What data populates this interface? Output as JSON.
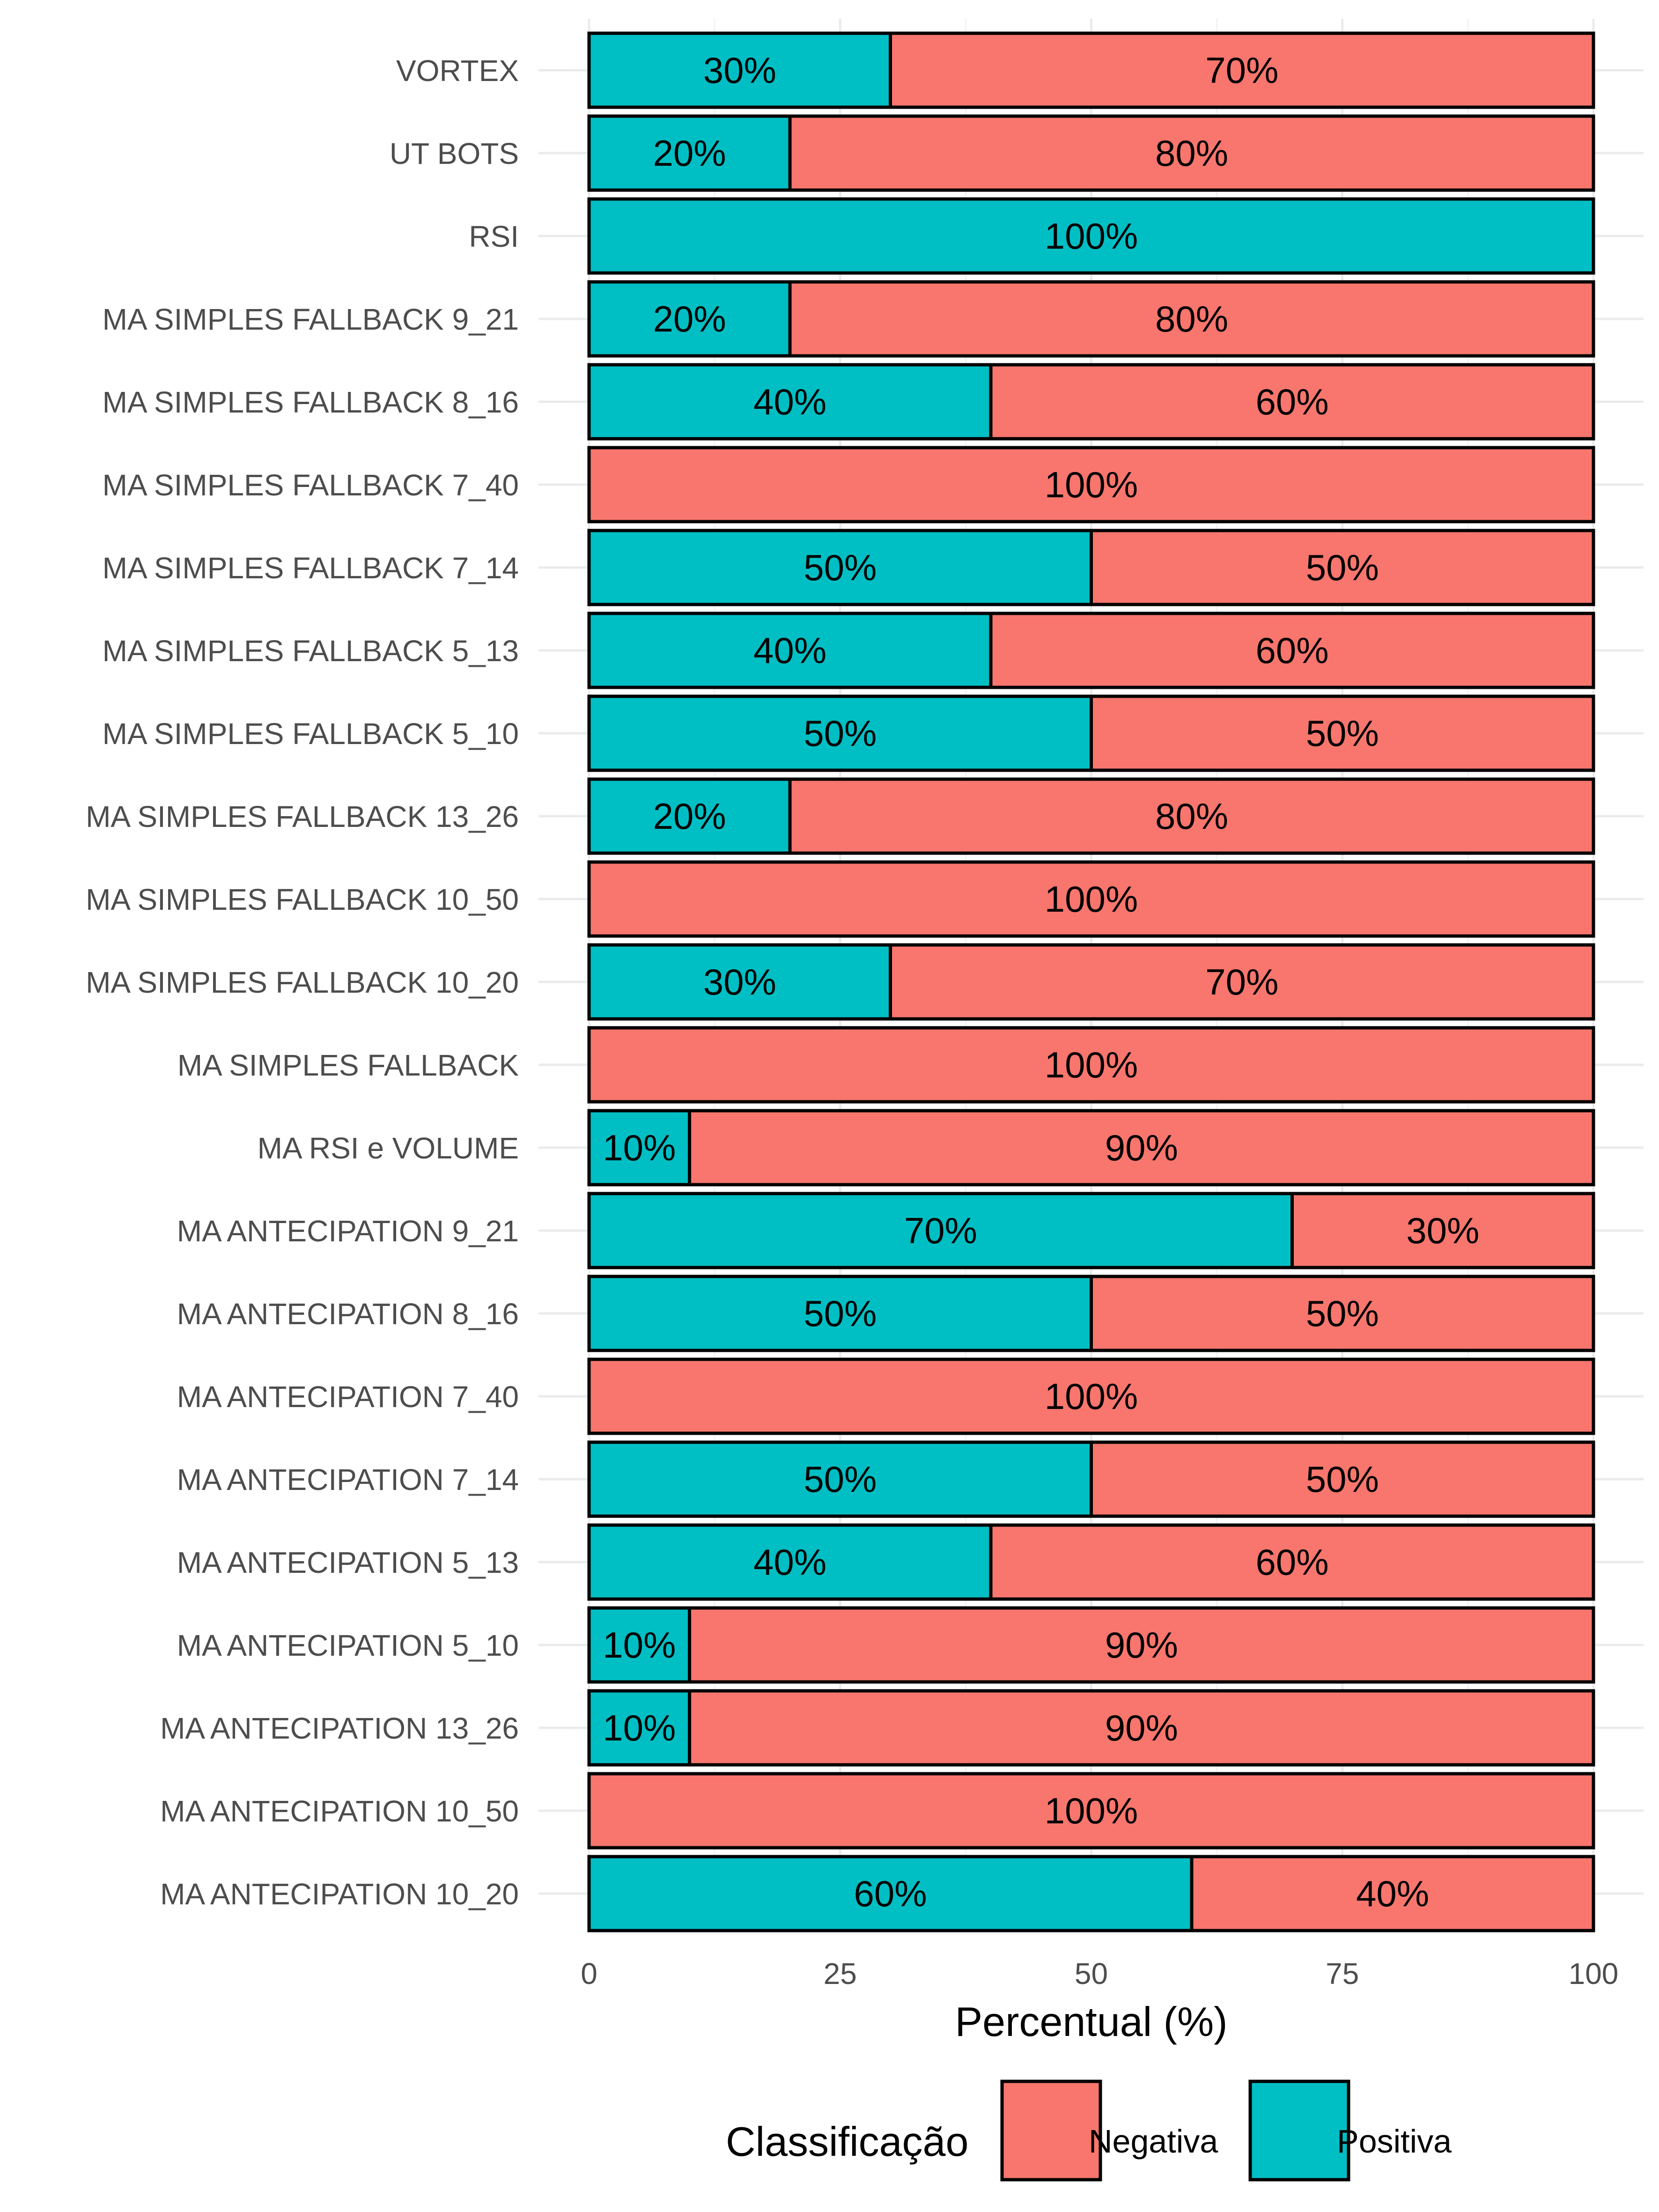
{
  "chart_data": {
    "type": "bar",
    "orientation": "horizontal",
    "stacked": true,
    "categories": [
      "VORTEX",
      "UT BOTS",
      "RSI",
      "MA SIMPLES FALLBACK 9_21",
      "MA SIMPLES FALLBACK 8_16",
      "MA SIMPLES FALLBACK 7_40",
      "MA SIMPLES FALLBACK 7_14",
      "MA SIMPLES FALLBACK 5_13",
      "MA SIMPLES FALLBACK 5_10",
      "MA SIMPLES FALLBACK 13_26",
      "MA SIMPLES FALLBACK 10_50",
      "MA SIMPLES FALLBACK 10_20",
      "MA SIMPLES FALLBACK",
      "MA RSI e VOLUME",
      "MA ANTECIPATION 9_21",
      "MA ANTECIPATION 8_16",
      "MA ANTECIPATION 7_40",
      "MA ANTECIPATION 7_14",
      "MA ANTECIPATION 5_13",
      "MA ANTECIPATION 5_10",
      "MA ANTECIPATION 13_26",
      "MA ANTECIPATION 10_50",
      "MA ANTECIPATION 10_20"
    ],
    "series": [
      {
        "name": "Positiva",
        "color": "#00BFC4",
        "values": [
          30,
          20,
          100,
          20,
          40,
          0,
          50,
          40,
          50,
          20,
          0,
          30,
          0,
          10,
          70,
          50,
          0,
          50,
          40,
          10,
          10,
          0,
          60
        ]
      },
      {
        "name": "Negativa",
        "color": "#F8766D",
        "values": [
          70,
          80,
          0,
          80,
          60,
          100,
          50,
          60,
          50,
          80,
          100,
          70,
          100,
          90,
          30,
          50,
          100,
          50,
          60,
          90,
          90,
          100,
          40
        ]
      }
    ],
    "xlabel": "Percentual (%)",
    "ylabel": "",
    "xlim": [
      0,
      100
    ],
    "xticks": [
      "0",
      "25",
      "50",
      "75",
      "100"
    ],
    "value_label_suffix": "%",
    "legend": {
      "title": "Classificação",
      "position": "bottom",
      "entries": [
        {
          "name": "Negativa",
          "color": "#F8766D"
        },
        {
          "name": "Positiva",
          "color": "#00BFC4"
        }
      ]
    },
    "grid": true
  }
}
